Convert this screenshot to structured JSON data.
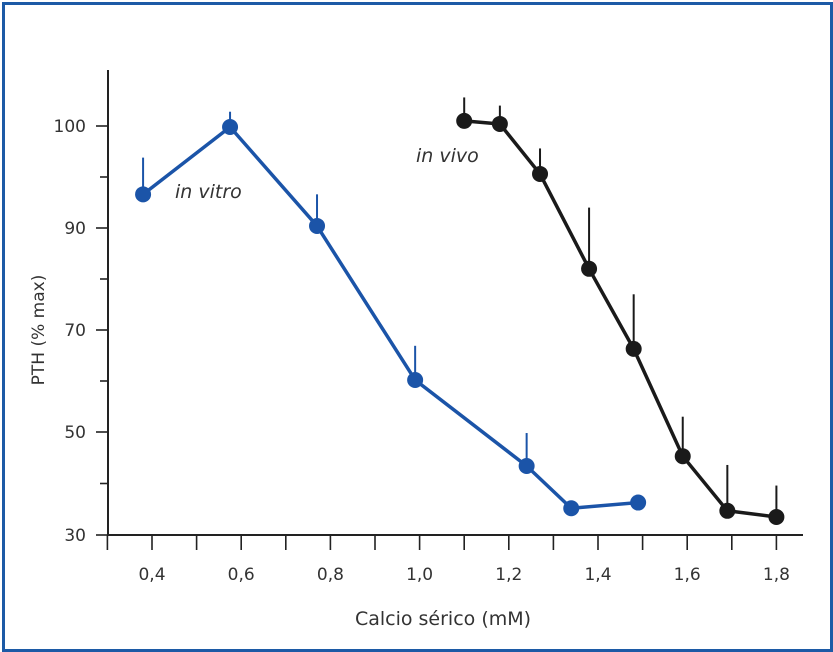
{
  "chart_data": {
    "type": "line",
    "xlabel": "Calcio sérico (mM)",
    "ylabel": "PTH (% max)",
    "x_ticks": [
      "0,4",
      "0,6",
      "0,8",
      "1,0",
      "1,2",
      "1,4",
      "1,6",
      "1,8"
    ],
    "x_tick_values": [
      0.4,
      0.6,
      0.8,
      1.0,
      1.2,
      1.4,
      1.6,
      1.8
    ],
    "y_ticks": [
      "30",
      "50",
      "70",
      "90",
      "100"
    ],
    "y_tick_values": [
      30,
      50,
      70,
      90,
      100
    ],
    "xlim": [
      0.3,
      1.85
    ],
    "ylim": [
      30,
      105
    ],
    "grid": false,
    "series": [
      {
        "name": "in vitro",
        "color": "#1b54a8",
        "x": [
          0.38,
          0.575,
          0.77,
          0.99,
          1.24,
          1.34,
          1.49
        ],
        "y": [
          93.3,
          99.9,
          90.2,
          60.2,
          43.4,
          35.2,
          36.3
        ],
        "error_top": [
          96.9,
          101.4,
          93.3,
          66.9,
          49.8,
          null,
          null
        ]
      },
      {
        "name": "in vivo",
        "color": "#1a1a1a",
        "x": [
          1.1,
          1.18,
          1.27,
          1.38,
          1.48,
          1.59,
          1.69,
          1.8
        ],
        "y": [
          100.5,
          100.2,
          95.3,
          82.0,
          66.3,
          45.3,
          34.7,
          33.5
        ],
        "error_top": [
          102.8,
          102.0,
          97.8,
          92.0,
          77.0,
          53.0,
          43.6,
          39.6
        ]
      }
    ]
  }
}
